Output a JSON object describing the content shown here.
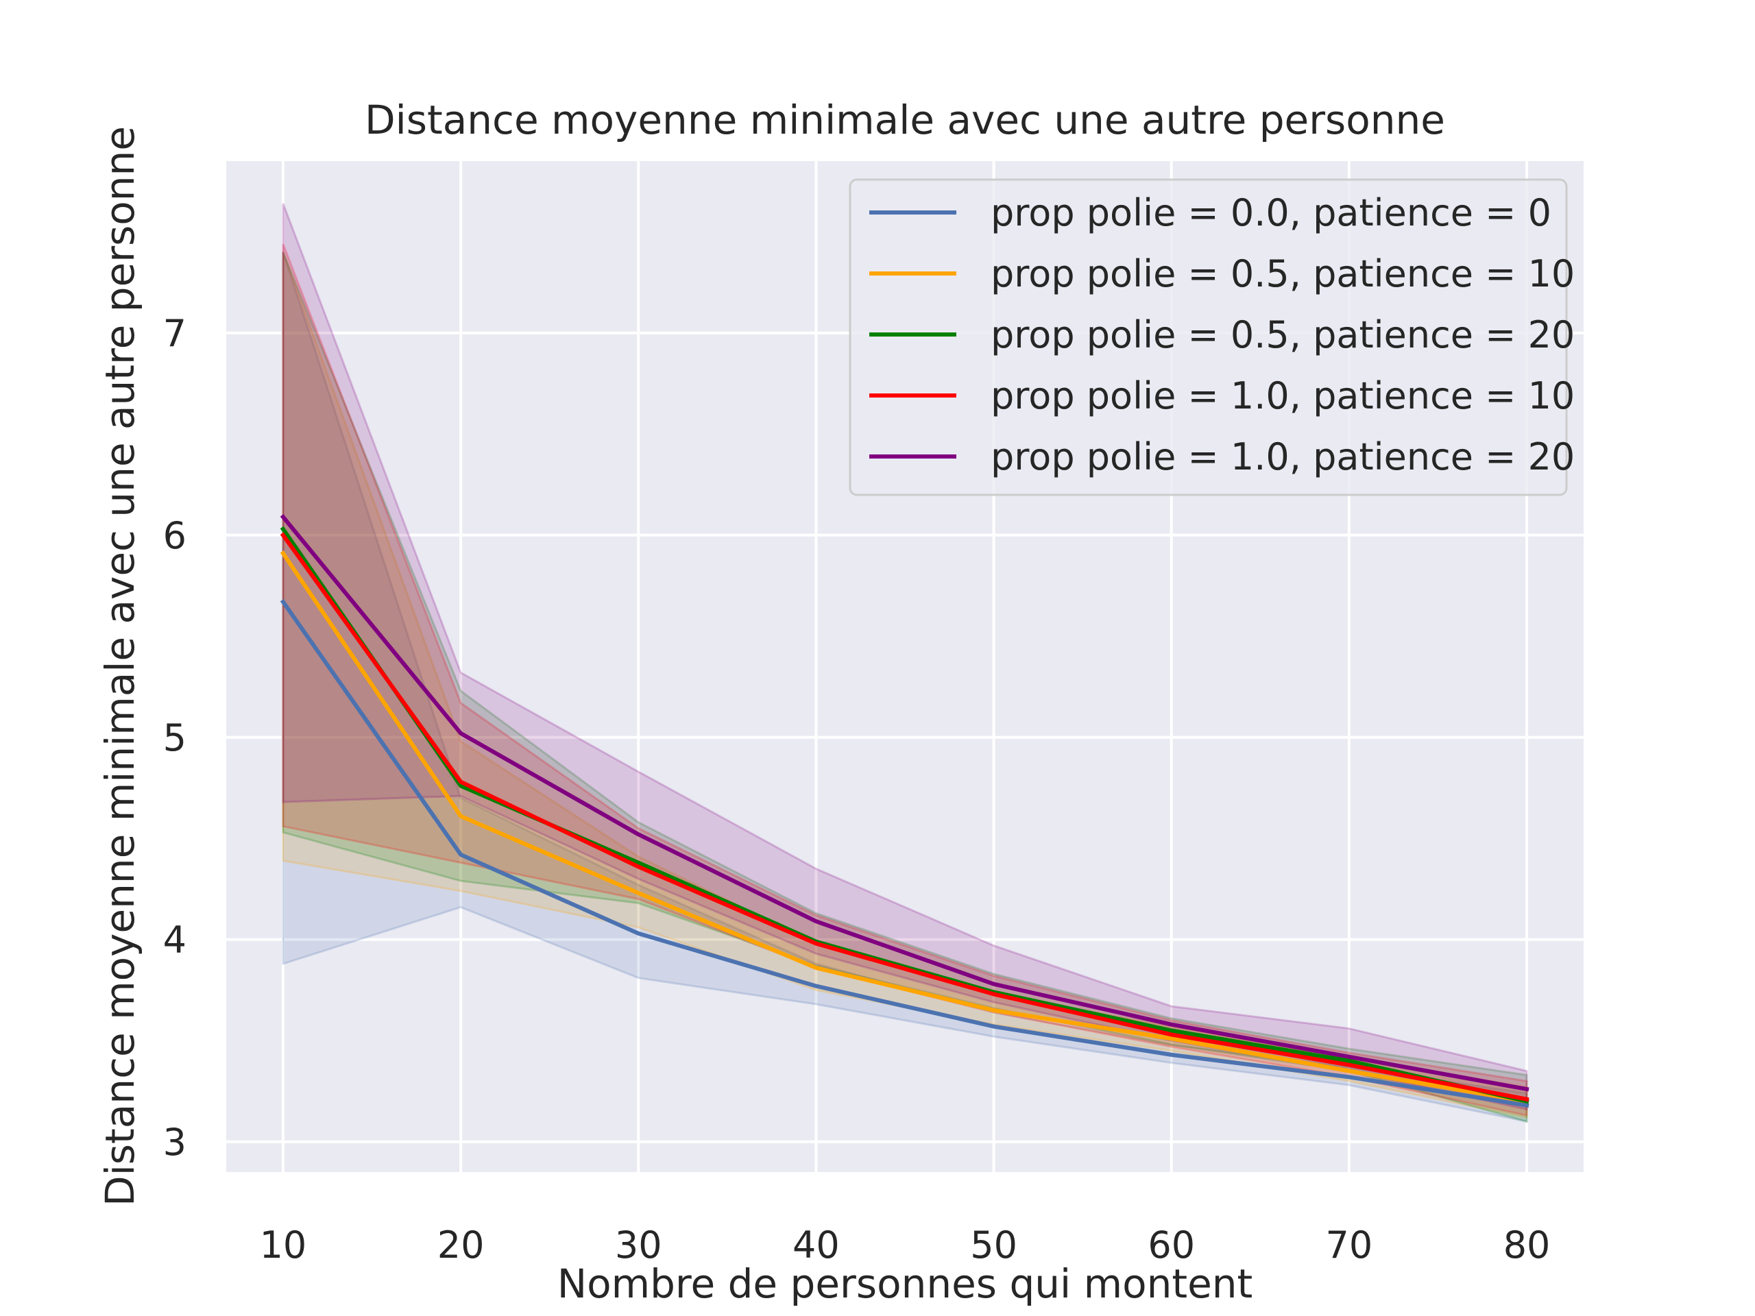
{
  "chart_data": {
    "type": "line",
    "title": "Distance moyenne minimale avec une autre personne",
    "xlabel": "Nombre de personnes qui montent",
    "ylabel": "Distance moyenne minimale avec une autre personne",
    "x": [
      10,
      20,
      30,
      40,
      50,
      60,
      70,
      80
    ],
    "xticks": [
      "10",
      "20",
      "30",
      "40",
      "50",
      "60",
      "70",
      "80"
    ],
    "yticks": [
      "3",
      "4",
      "5",
      "6",
      "7"
    ],
    "xlim": [
      6.8,
      83.2
    ],
    "ylim": [
      2.85,
      7.85
    ],
    "grid": true,
    "background_color": "#eaeaf2",
    "legend_position": "top-right",
    "series": [
      {
        "name": "prop polie = 0.0, patience = 0",
        "color": "#4c72b0",
        "values": [
          5.67,
          4.42,
          4.03,
          3.77,
          3.57,
          3.43,
          3.32,
          3.18
        ],
        "lower": [
          3.88,
          4.16,
          3.81,
          3.68,
          3.52,
          3.39,
          3.28,
          3.1
        ],
        "upper": [
          7.4,
          4.7,
          4.27,
          3.88,
          3.64,
          3.48,
          3.37,
          3.24
        ]
      },
      {
        "name": "prop polie = 0.5, patience = 10",
        "color": "#ffa500",
        "values": [
          5.91,
          4.61,
          4.23,
          3.86,
          3.65,
          3.51,
          3.35,
          3.2
        ],
        "lower": [
          4.39,
          4.24,
          4.06,
          3.75,
          3.58,
          3.45,
          3.3,
          3.12
        ],
        "upper": [
          7.4,
          4.98,
          4.41,
          3.98,
          3.73,
          3.57,
          3.41,
          3.27
        ]
      },
      {
        "name": "prop polie = 0.5, patience = 20",
        "color": "#008000",
        "values": [
          6.03,
          4.76,
          4.38,
          3.99,
          3.74,
          3.55,
          3.4,
          3.2
        ],
        "lower": [
          4.53,
          4.29,
          4.18,
          3.87,
          3.66,
          3.48,
          3.35,
          3.1
        ],
        "upper": [
          7.4,
          5.23,
          4.58,
          4.13,
          3.83,
          3.61,
          3.46,
          3.33
        ]
      },
      {
        "name": "prop polie = 1.0, patience = 10",
        "color": "#ff0000",
        "values": [
          6.0,
          4.78,
          4.36,
          3.98,
          3.73,
          3.53,
          3.38,
          3.21
        ],
        "lower": [
          4.56,
          4.38,
          4.2,
          3.86,
          3.64,
          3.47,
          3.32,
          3.13
        ],
        "upper": [
          7.44,
          5.17,
          4.55,
          4.12,
          3.82,
          3.6,
          3.44,
          3.3
        ]
      },
      {
        "name": "prop polie = 1.0, patience = 20",
        "color": "#800080",
        "values": [
          6.09,
          5.02,
          4.52,
          4.09,
          3.78,
          3.58,
          3.42,
          3.26
        ],
        "lower": [
          4.68,
          4.71,
          4.3,
          3.93,
          3.69,
          3.5,
          3.35,
          3.16
        ],
        "upper": [
          7.64,
          5.32,
          4.83,
          4.35,
          3.97,
          3.67,
          3.56,
          3.35
        ]
      }
    ]
  }
}
